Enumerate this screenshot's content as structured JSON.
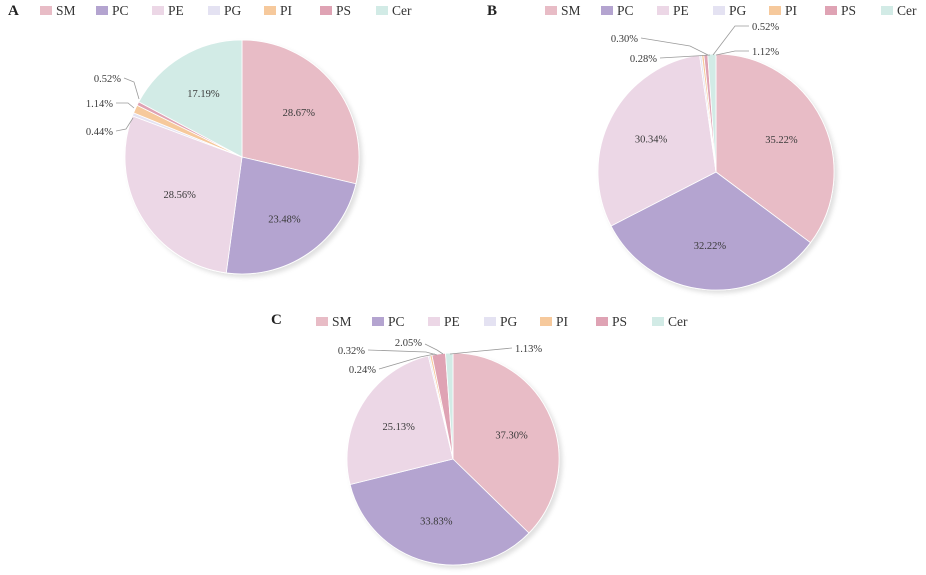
{
  "colors": {
    "SM": "#e8bcc6",
    "PC": "#b4a4d0",
    "PE": "#ecd7e6",
    "PG": "#e4e2f2",
    "PI": "#f6c99c",
    "PS": "#dfa3b4",
    "Cer": "#d2ebe6"
  },
  "legend_keys": [
    "SM",
    "PC",
    "PE",
    "PG",
    "PI",
    "PS",
    "Cer"
  ],
  "chart_data": [
    {
      "type": "pie",
      "panel": "A",
      "legend": [
        "SM",
        "PC",
        "PE",
        "PG",
        "PI",
        "PS",
        "Cer"
      ],
      "slices": [
        {
          "name": "SM",
          "value": 28.67,
          "label": "28.67%"
        },
        {
          "name": "PC",
          "value": 23.48,
          "label": "23.48%"
        },
        {
          "name": "PE",
          "value": 28.56,
          "label": "28.56%"
        },
        {
          "name": "PG",
          "value": 0.44,
          "label": "0.44%"
        },
        {
          "name": "PI",
          "value": 1.14,
          "label": "1.14%"
        },
        {
          "name": "PS",
          "value": 0.52,
          "label": "0.52%"
        },
        {
          "name": "Cer",
          "value": 17.19,
          "label": "17.19%"
        }
      ]
    },
    {
      "type": "pie",
      "panel": "B",
      "legend": [
        "SM",
        "PC",
        "PE",
        "PG",
        "PI",
        "PS",
        "Cer"
      ],
      "slices": [
        {
          "name": "SM",
          "value": 35.22,
          "label": "35.22%"
        },
        {
          "name": "PC",
          "value": 32.22,
          "label": "32.22%"
        },
        {
          "name": "PE",
          "value": 30.34,
          "label": "30.34%"
        },
        {
          "name": "PG",
          "value": 0.28,
          "label": "0.28%"
        },
        {
          "name": "PI",
          "value": 0.3,
          "label": "0.30%"
        },
        {
          "name": "PS",
          "value": 0.52,
          "label": "0.52%"
        },
        {
          "name": "Cer",
          "value": 1.12,
          "label": "1.12%"
        }
      ]
    },
    {
      "type": "pie",
      "panel": "C",
      "legend": [
        "SM",
        "PC",
        "PE",
        "PG",
        "PI",
        "PS",
        "Cer"
      ],
      "slices": [
        {
          "name": "SM",
          "value": 37.3,
          "label": "37.30%"
        },
        {
          "name": "PC",
          "value": 33.83,
          "label": "33.83%"
        },
        {
          "name": "PE",
          "value": 25.13,
          "label": "25.13%"
        },
        {
          "name": "PG",
          "value": 0.24,
          "label": "0.24%"
        },
        {
          "name": "PI",
          "value": 0.32,
          "label": "0.32%"
        },
        {
          "name": "PS",
          "value": 2.05,
          "label": "2.05%"
        },
        {
          "name": "Cer",
          "value": 1.13,
          "label": "1.13%"
        }
      ]
    }
  ]
}
